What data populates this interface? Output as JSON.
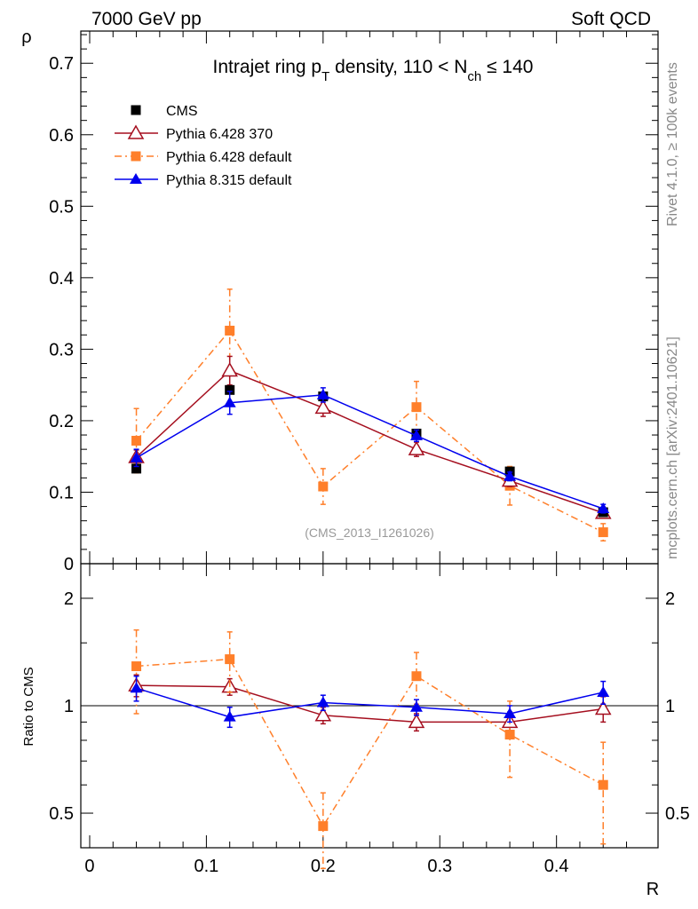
{
  "header": {
    "left": "7000 GeV pp",
    "right": "Soft QCD"
  },
  "side_labels": {
    "rivet": "Rivet 4.1.0, ≥ 100k events",
    "mcplots": "mcplots.cern.ch [arXiv:2401.10621]"
  },
  "chart_data": [
    {
      "type": "scatter",
      "title_parts": {
        "a": "Intrajet ring p",
        "sub1": "T",
        "b": " density, 110 < N",
        "sub2": "ch",
        "c": " ≤ 140"
      },
      "ylabel": "ρ",
      "xlabel": "R",
      "watermark": "(CMS_2013_I1261026)",
      "xlim": [
        -0.0076,
        0.487
      ],
      "ylim": [
        0,
        0.745
      ],
      "yticks": [
        "0",
        "0.1",
        "0.2",
        "0.3",
        "0.4",
        "0.5",
        "0.6",
        "0.7"
      ],
      "legend_position": "top-left",
      "x": [
        0.04,
        0.12,
        0.2,
        0.28,
        0.36,
        0.44
      ],
      "series": [
        {
          "name": "CMS",
          "color": "#000000",
          "marker": "square",
          "line": "none",
          "values": [
            0.133,
            0.243,
            0.234,
            0.182,
            0.129,
            0.072
          ],
          "errors": [
            0.004,
            0.004,
            0.004,
            0.004,
            0.003,
            0.003
          ]
        },
        {
          "name": "Pythia 6.428 370",
          "color": "#a50f1f",
          "marker": "open-triangle",
          "line": "solid",
          "values": [
            0.149,
            0.27,
            0.218,
            0.16,
            0.116,
            0.071
          ],
          "errors": [
            0.01,
            0.02,
            0.012,
            0.01,
            0.008,
            0.006
          ]
        },
        {
          "name": "Pythia 6.428 default",
          "color": "#ff7f2a",
          "marker": "square",
          "line": "dashdot",
          "values": [
            0.172,
            0.326,
            0.108,
            0.219,
            0.109,
            0.044
          ],
          "errors": [
            0.045,
            0.058,
            0.025,
            0.036,
            0.027,
            0.012
          ]
        },
        {
          "name": "Pythia 8.315 default",
          "color": "#0000ee",
          "marker": "triangle",
          "line": "solid",
          "values": [
            0.148,
            0.225,
            0.236,
            0.179,
            0.122,
            0.077
          ],
          "errors": [
            0.012,
            0.016,
            0.01,
            0.008,
            0.006,
            0.006
          ]
        }
      ]
    },
    {
      "type": "scatter",
      "ylabel": "Ratio to CMS",
      "yscale": "log",
      "ylim": [
        0.4,
        2.5
      ],
      "yticks": [
        {
          "v": 0.5,
          "label": "0.5"
        },
        {
          "v": 1,
          "label": "1"
        },
        {
          "v": 2,
          "label": "2"
        }
      ],
      "xticks": [
        "0",
        "0.1",
        "0.2",
        "0.3",
        "0.4"
      ],
      "x": [
        0.04,
        0.12,
        0.2,
        0.28,
        0.36,
        0.44
      ],
      "series": [
        {
          "name": "Pythia 6.428 370",
          "values": [
            1.14,
            1.13,
            0.94,
            0.9,
            0.9,
            0.98
          ],
          "errors": [
            0.08,
            0.06,
            0.05,
            0.05,
            0.06,
            0.08
          ]
        },
        {
          "name": "Pythia 6.428 default",
          "values": [
            1.29,
            1.35,
            0.46,
            1.21,
            0.83,
            0.6
          ],
          "errors": [
            0.34,
            0.26,
            0.11,
            0.2,
            0.2,
            0.19
          ]
        },
        {
          "name": "Pythia 8.315 default",
          "values": [
            1.12,
            0.93,
            1.02,
            0.99,
            0.95,
            1.09
          ],
          "errors": [
            0.09,
            0.06,
            0.05,
            0.05,
            0.05,
            0.08
          ]
        }
      ]
    }
  ]
}
